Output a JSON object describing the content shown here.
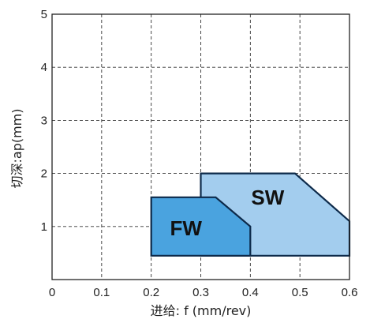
{
  "chart_data": {
    "type": "area",
    "title": "",
    "xlabel": "进给: f (mm/rev)",
    "ylabel": "切深:ap(mm)",
    "xlim": [
      0,
      0.6
    ],
    "ylim": [
      0,
      5
    ],
    "x_ticks": [
      "0",
      "0.1",
      "0.2",
      "0.3",
      "0.4",
      "0.5",
      "0.6"
    ],
    "y_ticks": [
      "1",
      "2",
      "3",
      "4",
      "5"
    ],
    "grid": true,
    "series": [
      {
        "name": "SW",
        "color": "#a3cdee",
        "polygon": [
          [
            0.3,
            0.45
          ],
          [
            0.6,
            0.45
          ],
          [
            0.6,
            1.1
          ],
          [
            0.49,
            2.0
          ],
          [
            0.3,
            2.0
          ]
        ]
      },
      {
        "name": "FW",
        "color": "#4aa3df",
        "polygon": [
          [
            0.2,
            0.45
          ],
          [
            0.4,
            0.45
          ],
          [
            0.4,
            1.0
          ],
          [
            0.33,
            1.55
          ],
          [
            0.2,
            1.55
          ]
        ]
      }
    ]
  }
}
